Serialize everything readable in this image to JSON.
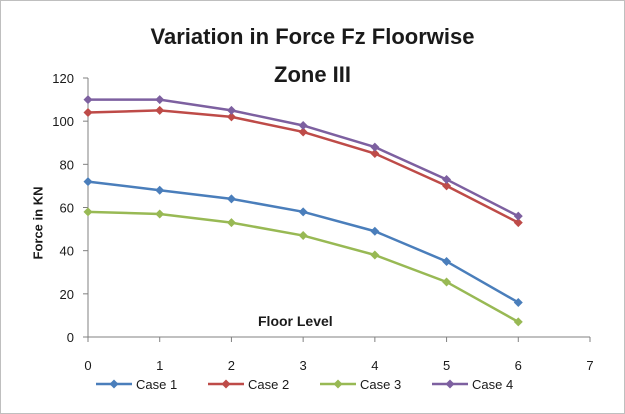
{
  "chart_data": {
    "type": "line",
    "title": "Variation in Force Fz Floorwise",
    "subtitle": "Zone III",
    "xlabel": "Floor Level",
    "ylabel": "Force in KN",
    "x": [
      0,
      1,
      2,
      3,
      4,
      5,
      6
    ],
    "xlim": [
      0,
      7
    ],
    "ylim": [
      0,
      120
    ],
    "xticks": [
      "0",
      "1",
      "2",
      "3",
      "4",
      "5",
      "6",
      "7"
    ],
    "yticks": [
      "0",
      "20",
      "40",
      "60",
      "80",
      "100",
      "120"
    ],
    "grid": false,
    "legend_position": "bottom",
    "series": [
      {
        "name": "Case 1",
        "color": "#4a7ebb",
        "values": [
          72,
          68,
          64,
          58,
          49,
          35,
          16
        ]
      },
      {
        "name": "Case 2",
        "color": "#be4b48",
        "values": [
          104,
          105,
          102,
          95,
          85,
          70,
          53
        ]
      },
      {
        "name": "Case 3",
        "color": "#98b954",
        "values": [
          58,
          57,
          53,
          47,
          38,
          25.5,
          7
        ]
      },
      {
        "name": "Case 4",
        "color": "#7d60a0",
        "values": [
          110,
          110,
          105,
          98,
          88,
          73,
          56
        ]
      }
    ]
  }
}
